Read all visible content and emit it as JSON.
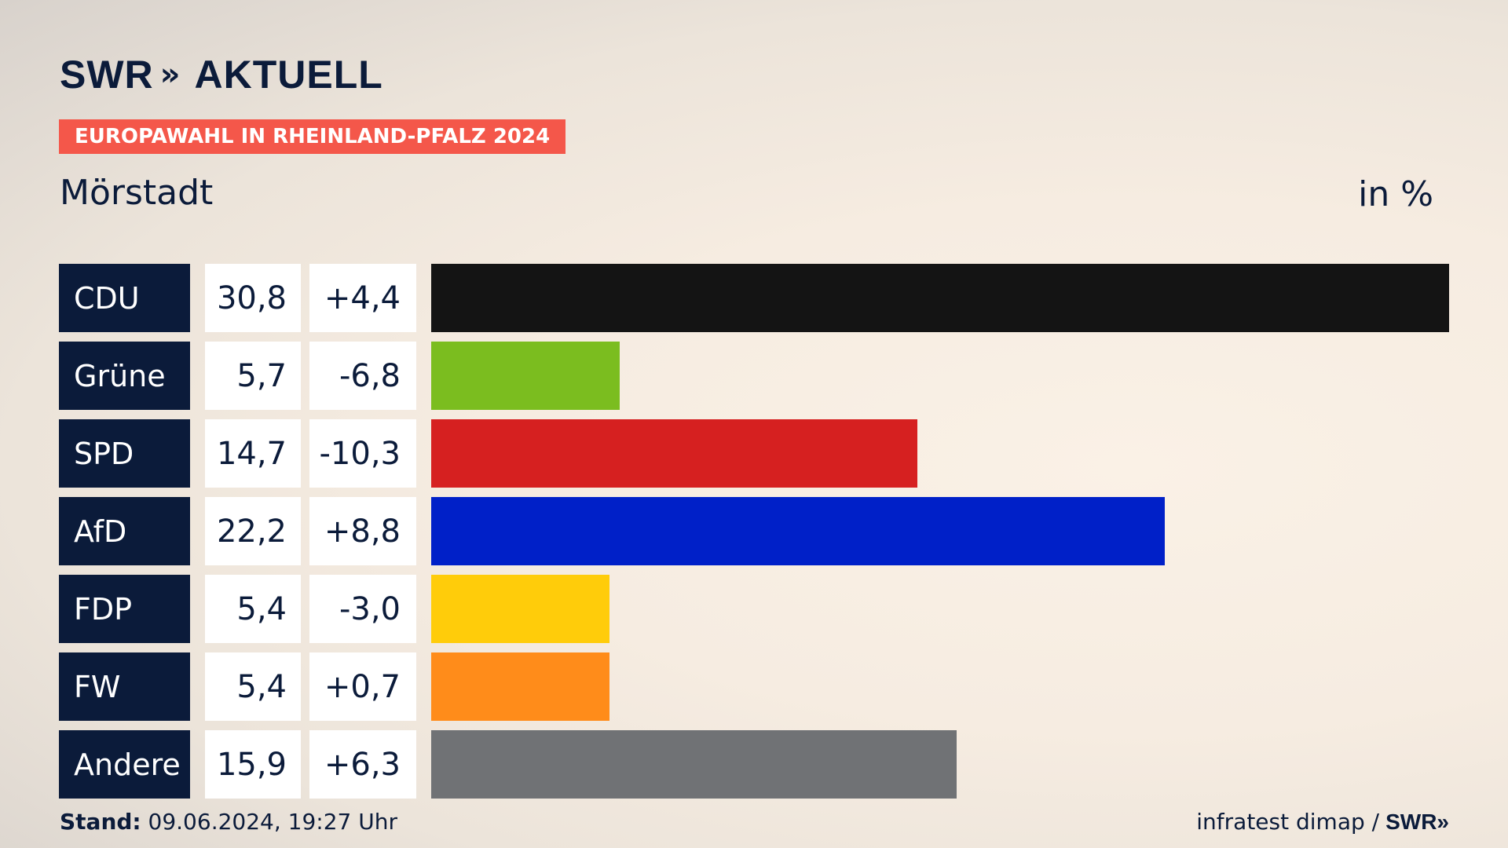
{
  "brand": {
    "logo_text": "SWR",
    "logo_chevrons": "»",
    "logo_sub": "AKTUELL"
  },
  "badge": "EUROPAWAHL IN RHEINLAND-PFALZ 2024",
  "region": "Mörstadt",
  "unit": "in %",
  "footer": {
    "stand_label": "Stand:",
    "stand_value": "09.06.2024, 19:27 Uhr",
    "source": "infratest dimap /",
    "logo_text": "SWR",
    "logo_chevrons": "»"
  },
  "chart_data": {
    "type": "bar",
    "orientation": "horizontal",
    "categories": [
      "CDU",
      "Grüne",
      "SPD",
      "AfD",
      "FDP",
      "FW",
      "Andere"
    ],
    "values": [
      30.8,
      5.7,
      14.7,
      22.2,
      5.4,
      5.4,
      15.9
    ],
    "value_labels": [
      "30,8",
      "5,7",
      "14,7",
      "22,2",
      "5,4",
      "5,4",
      "15,9"
    ],
    "changes": [
      4.4,
      -6.8,
      -10.3,
      8.8,
      -3.0,
      0.7,
      6.3
    ],
    "change_labels": [
      "+4,4",
      "-6,8",
      "-10,3",
      "+8,8",
      "-3,0",
      "+0,7",
      "+6,3"
    ],
    "colors": [
      "#141414",
      "#7bbd1f",
      "#d62020",
      "#0020c8",
      "#ffcc0a",
      "#ff8c1a",
      "#707275"
    ],
    "grid": false,
    "legend": "none"
  }
}
